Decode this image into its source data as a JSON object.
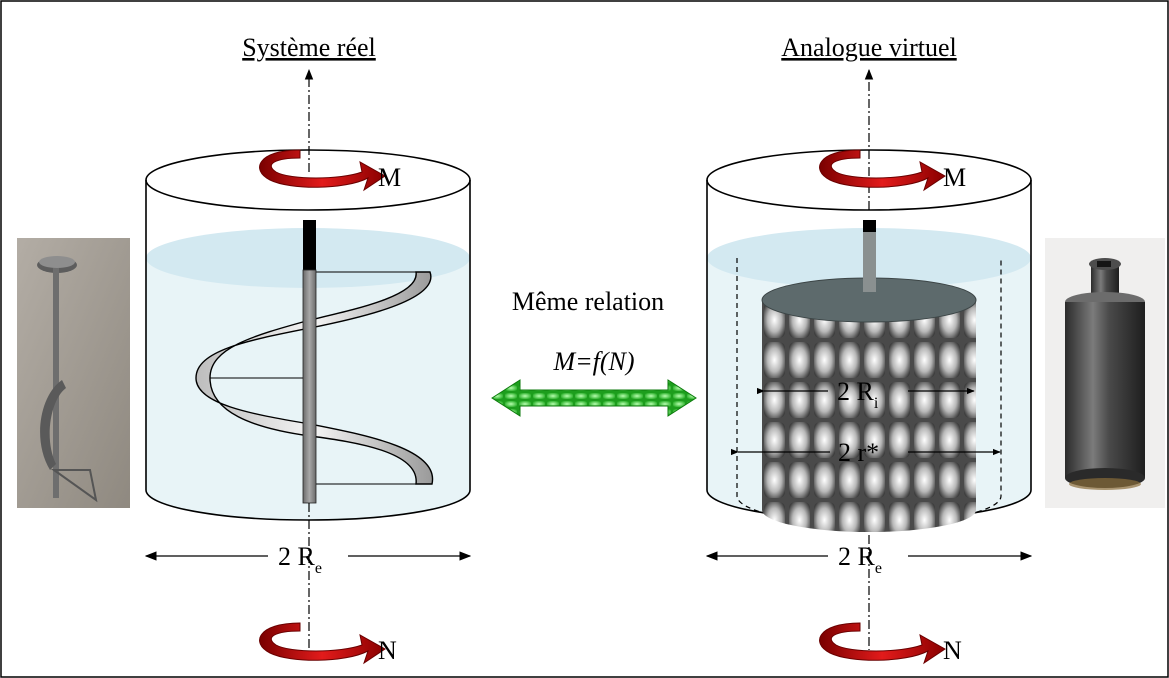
{
  "left_panel": {
    "title": "Système réel",
    "torque_label": "M",
    "speed_label": "N",
    "diameter_label": "2 R",
    "diameter_sub": "e",
    "photo_icon": "helical-ribbon-impeller-photo"
  },
  "right_panel": {
    "title": "Analogue virtuel",
    "torque_label": "M",
    "speed_label": "N",
    "inner_diameter_label": "2 R",
    "inner_diameter_sub": "i",
    "virtual_radius_label": "2 r*",
    "diameter_label": "2 R",
    "diameter_sub": "e",
    "photo_icon": "cylindrical-rotor-photo"
  },
  "center": {
    "relation_text": "Même relation",
    "equation_prefix": "M=",
    "equation_function": "f(N)",
    "arrow_icon": "double-arrow-icon"
  },
  "colors": {
    "rotation_arrow": "#cc0000",
    "double_arrow": "#22cc22",
    "liquid": "#e6f3f7",
    "liquid_surface": "#d4eaf2"
  }
}
